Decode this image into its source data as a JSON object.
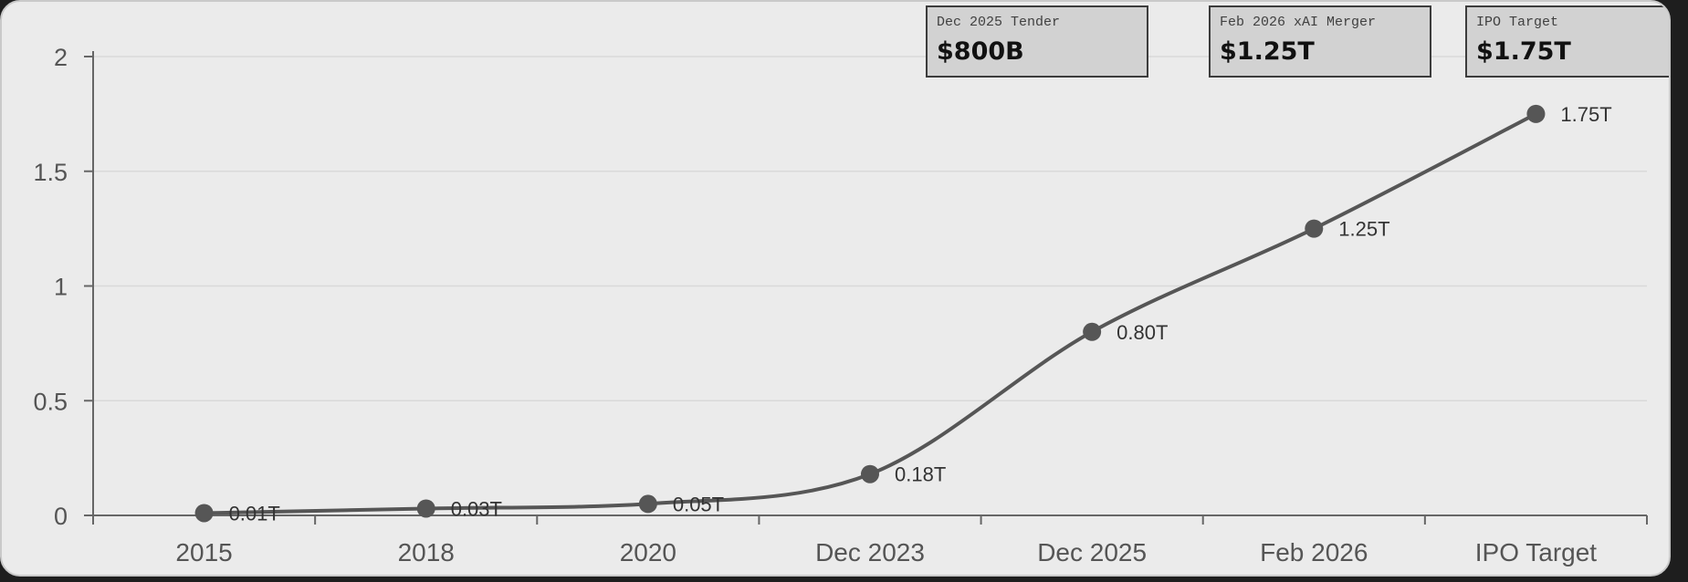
{
  "cards": [
    {
      "label": "Dec 2025 Tender",
      "value": "$800B"
    },
    {
      "label": "Feb 2026 xAI Merger",
      "value": "$1.25T"
    },
    {
      "label": "IPO Target",
      "value": "$1.75T"
    }
  ],
  "chart_data": {
    "type": "line",
    "categories": [
      "2015",
      "2018",
      "2020",
      "Dec 2023",
      "Dec 2025",
      "Feb 2026",
      "IPO Target"
    ],
    "values": [
      0.01,
      0.03,
      0.05,
      0.18,
      0.8,
      1.25,
      1.75
    ],
    "data_labels": [
      "0.01T",
      "0.03T",
      "0.05T",
      "0.18T",
      "0.80T",
      "1.25T",
      "1.75T"
    ],
    "yticks": [
      "0",
      "0.5",
      "1",
      "1.5",
      "2"
    ],
    "ylim": [
      0,
      2
    ],
    "grid": true,
    "line_color": "#565656",
    "point_color": "#565656"
  }
}
